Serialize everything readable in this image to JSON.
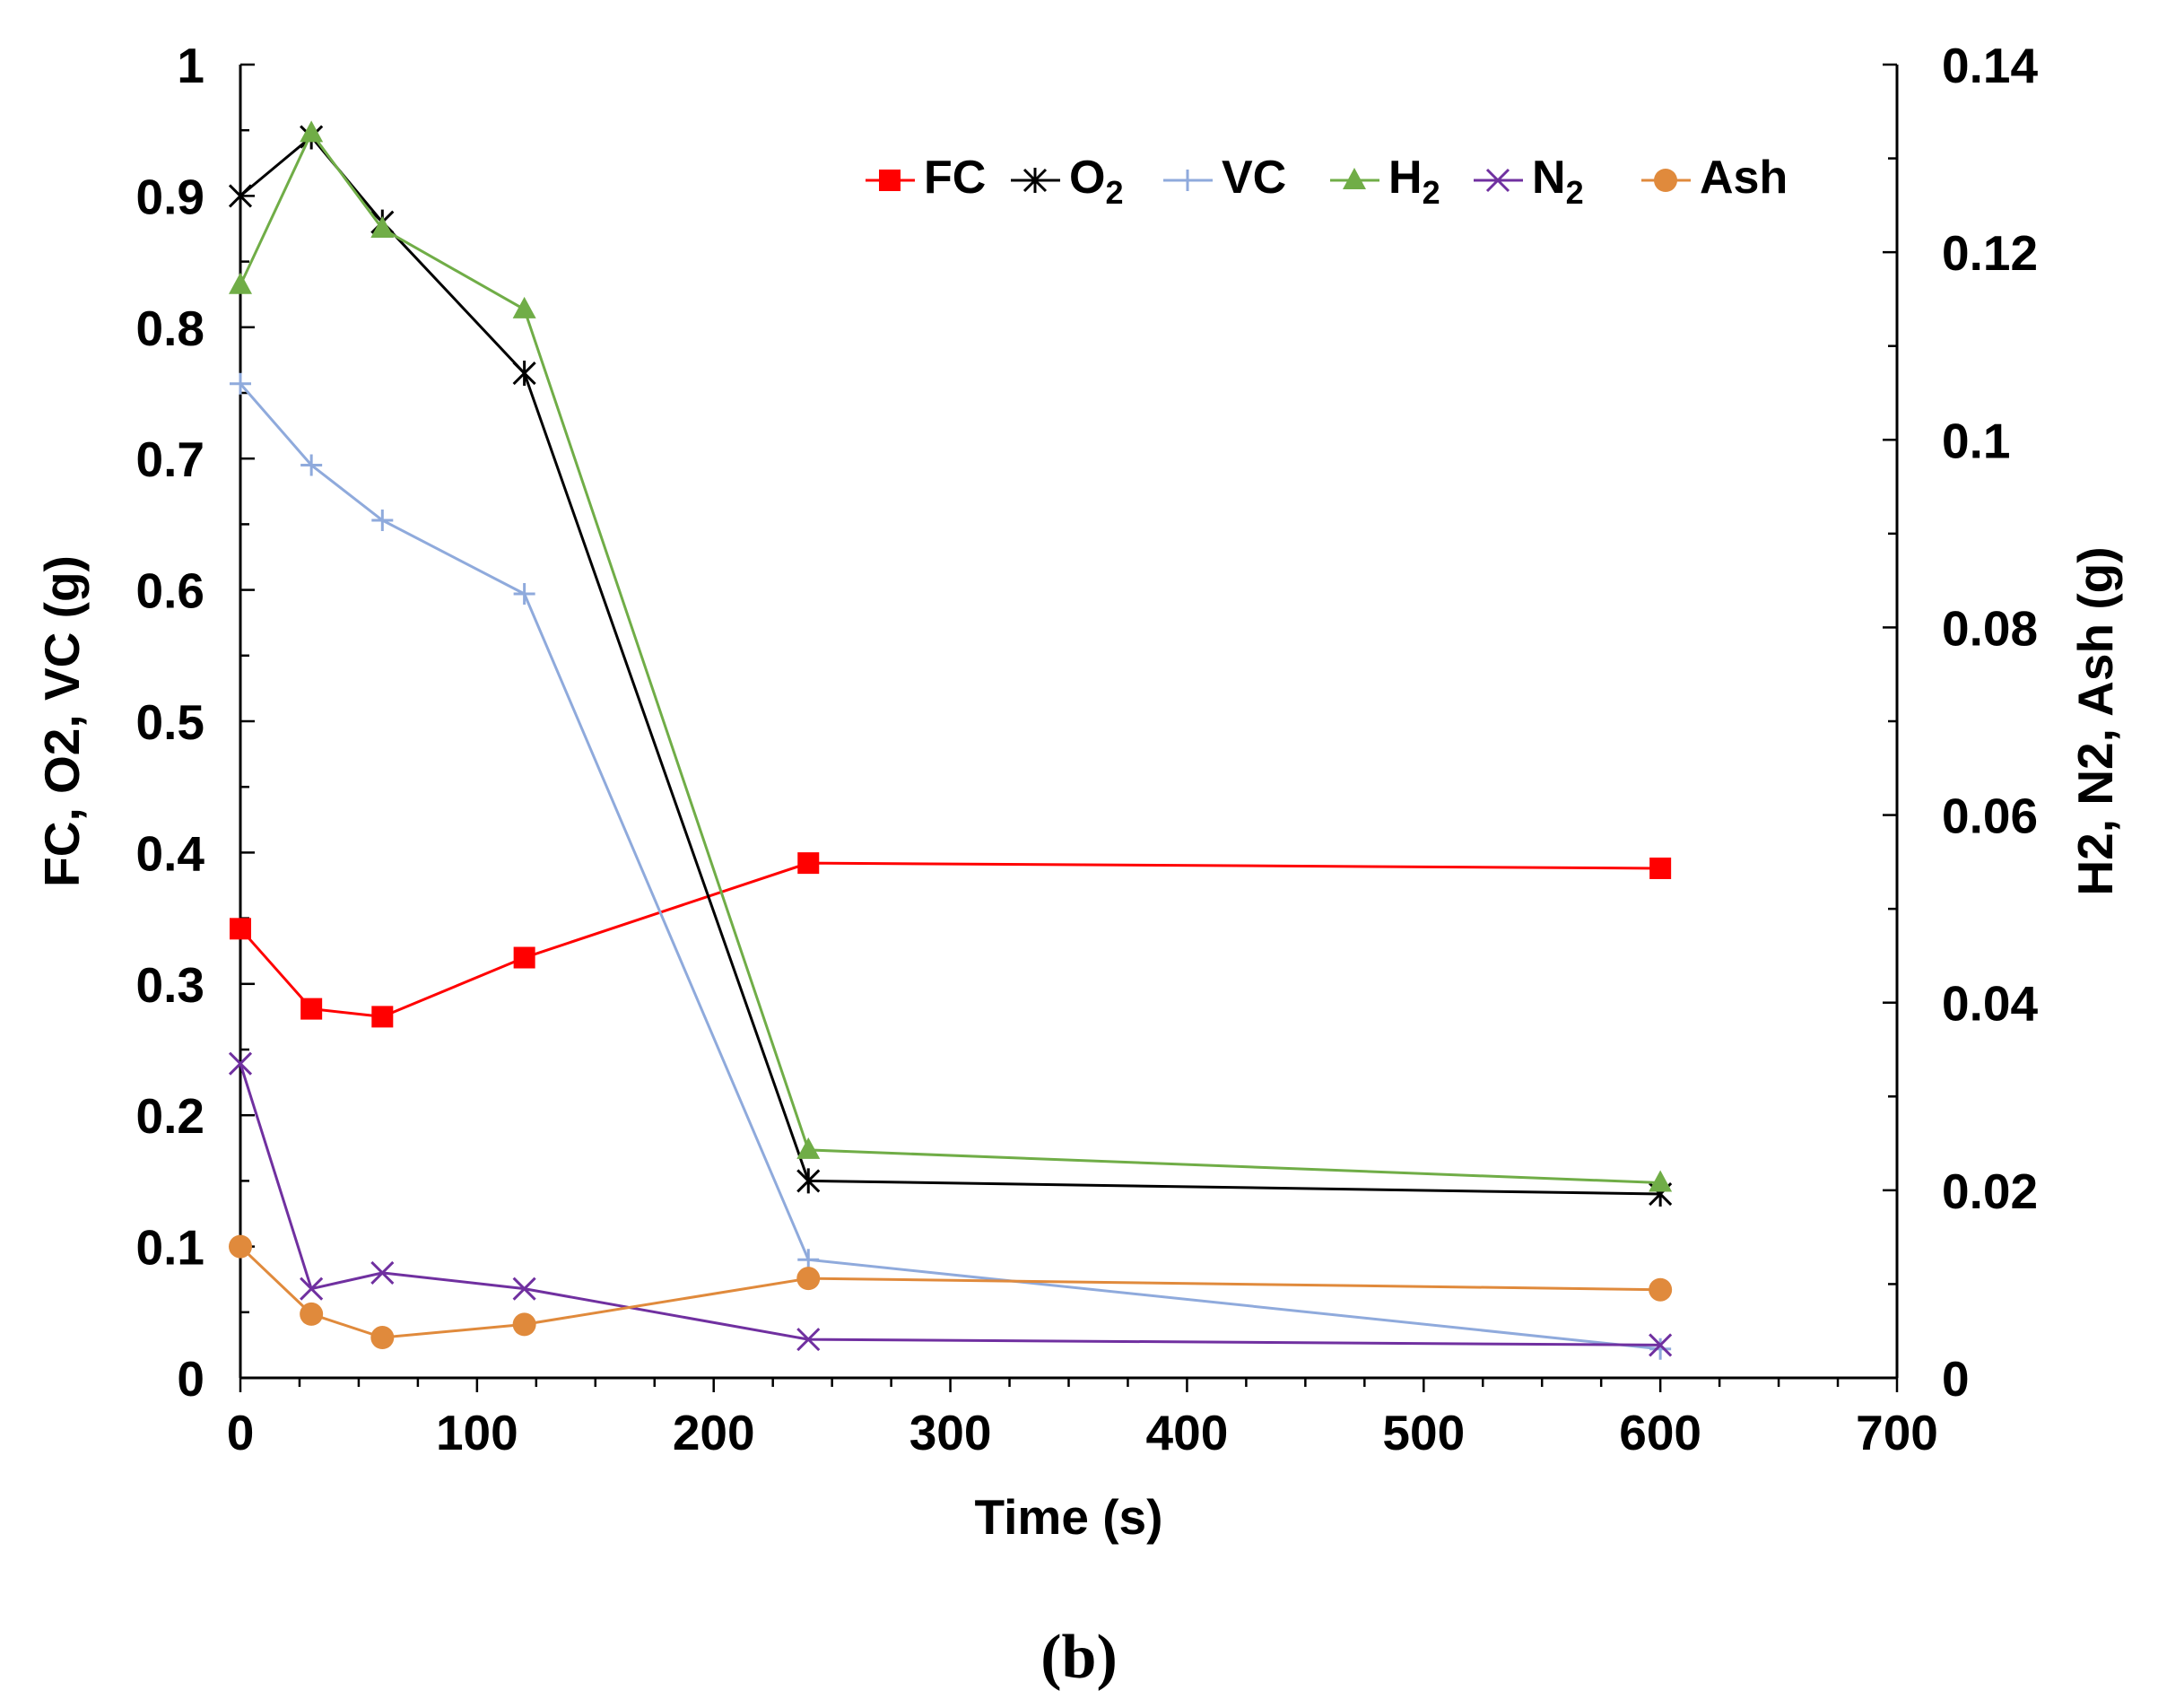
{
  "chart_data": {
    "type": "line",
    "caption": "(b)",
    "xlabel": "Time (s)",
    "ylabel_left": "FC, O2, VC (g)",
    "ylabel_right": "H2, N2, Ash (g)",
    "xlim": [
      0,
      700
    ],
    "ylim_left": [
      0,
      1
    ],
    "ylim_right": [
      0,
      0.14
    ],
    "x_ticks": [
      "0",
      "100",
      "200",
      "300",
      "400",
      "500",
      "600",
      "700"
    ],
    "y_left_ticks": [
      "0",
      "0.1",
      "0.2",
      "0.3",
      "0.4",
      "0.5",
      "0.6",
      "0.7",
      "0.8",
      "0.9",
      "1"
    ],
    "y_right_ticks": [
      "0",
      "0.02",
      "0.04",
      "0.06",
      "0.08",
      "0.1",
      "0.12",
      "0.14"
    ],
    "legend_position": "top-right",
    "x": [
      0,
      30,
      60,
      120,
      240,
      600
    ],
    "series": [
      {
        "name": "FC",
        "label_main": "FC",
        "label_sub": "",
        "axis": "left",
        "color": "#ff0000",
        "marker": "square",
        "values": [
          0.342,
          0.281,
          0.275,
          0.32,
          0.392,
          0.388
        ]
      },
      {
        "name": "O2",
        "label_main": "O",
        "label_sub": "2",
        "axis": "left",
        "color": "#000000",
        "marker": "star",
        "values": [
          0.9,
          0.945,
          0.88,
          0.765,
          0.15,
          0.14
        ]
      },
      {
        "name": "VC",
        "label_main": "VC",
        "label_sub": "",
        "axis": "left",
        "color": "#8faadc",
        "marker": "plus",
        "values": [
          0.757,
          0.695,
          0.653,
          0.597,
          0.09,
          0.022
        ]
      },
      {
        "name": "H2",
        "label_main": "H",
        "label_sub": "2",
        "axis": "right",
        "color": "#70ad47",
        "marker": "triangle",
        "values": [
          0.1165,
          0.1327,
          0.1225,
          0.1139,
          0.0243,
          0.0208
        ]
      },
      {
        "name": "N2",
        "label_main": "N",
        "label_sub": "2",
        "axis": "right",
        "color": "#7030a0",
        "marker": "x",
        "values": [
          0.0335,
          0.0095,
          0.0112,
          0.0095,
          0.0041,
          0.0035
        ]
      },
      {
        "name": "Ash",
        "label_main": "Ash",
        "label_sub": "",
        "axis": "right",
        "color": "#e08a3c",
        "marker": "circle",
        "values": [
          0.014,
          0.0068,
          0.0043,
          0.0057,
          0.0106,
          0.0094
        ]
      }
    ]
  }
}
